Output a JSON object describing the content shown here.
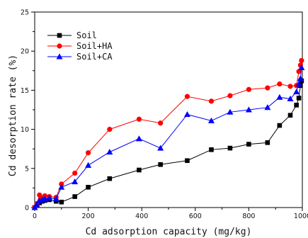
{
  "chart_data": {
    "type": "line",
    "title": "",
    "xlabel": "Cd adsorption capacity (mg/kg)",
    "ylabel": "Cd desorption rate (%)",
    "xlim": [
      0,
      1000
    ],
    "ylim": [
      0,
      25
    ],
    "x_ticks": [
      0,
      200,
      400,
      600,
      800,
      1000
    ],
    "y_ticks": [
      0,
      5,
      10,
      15,
      20,
      25
    ],
    "grid": false,
    "legend_position": "top-left",
    "series": [
      {
        "name": "Soil",
        "color": "#000000",
        "marker": "square",
        "x": [
          0,
          8,
          18,
          28,
          38,
          55,
          80,
          100,
          150,
          200,
          280,
          390,
          470,
          570,
          660,
          730,
          800,
          870,
          915,
          955,
          978,
          987,
          993,
          997
        ],
        "values": [
          0.0,
          0.3,
          0.6,
          0.8,
          0.9,
          1.0,
          0.8,
          0.7,
          1.4,
          2.6,
          3.7,
          4.8,
          5.5,
          6.0,
          7.4,
          7.6,
          8.1,
          8.3,
          10.5,
          11.8,
          13.1,
          14.0,
          15.6,
          16.2
        ]
      },
      {
        "name": "Soil+HA",
        "color": "#ff0000",
        "marker": "circle",
        "x": [
          0,
          8,
          18,
          28,
          38,
          55,
          80,
          100,
          150,
          200,
          280,
          390,
          470,
          570,
          660,
          730,
          800,
          870,
          915,
          955,
          978,
          987,
          993,
          997
        ],
        "values": [
          0.0,
          0.5,
          1.6,
          1.2,
          1.5,
          1.4,
          1.3,
          3.0,
          4.4,
          7.0,
          10.0,
          11.3,
          10.8,
          14.2,
          13.6,
          14.3,
          15.1,
          15.3,
          15.8,
          15.5,
          15.6,
          17.4,
          18.2,
          18.8
        ]
      },
      {
        "name": "Soil+CA",
        "color": "#0000ff",
        "marker": "triangle",
        "x": [
          0,
          8,
          18,
          28,
          38,
          55,
          80,
          100,
          150,
          200,
          280,
          390,
          470,
          570,
          660,
          730,
          800,
          870,
          915,
          955,
          978,
          987,
          993,
          997
        ],
        "values": [
          0.0,
          0.4,
          0.9,
          1.0,
          1.1,
          1.2,
          1.1,
          2.6,
          3.3,
          5.4,
          7.1,
          8.8,
          7.6,
          11.9,
          11.1,
          12.2,
          12.5,
          12.8,
          14.1,
          13.9,
          14.8,
          15.8,
          16.5,
          17.9
        ]
      }
    ]
  }
}
